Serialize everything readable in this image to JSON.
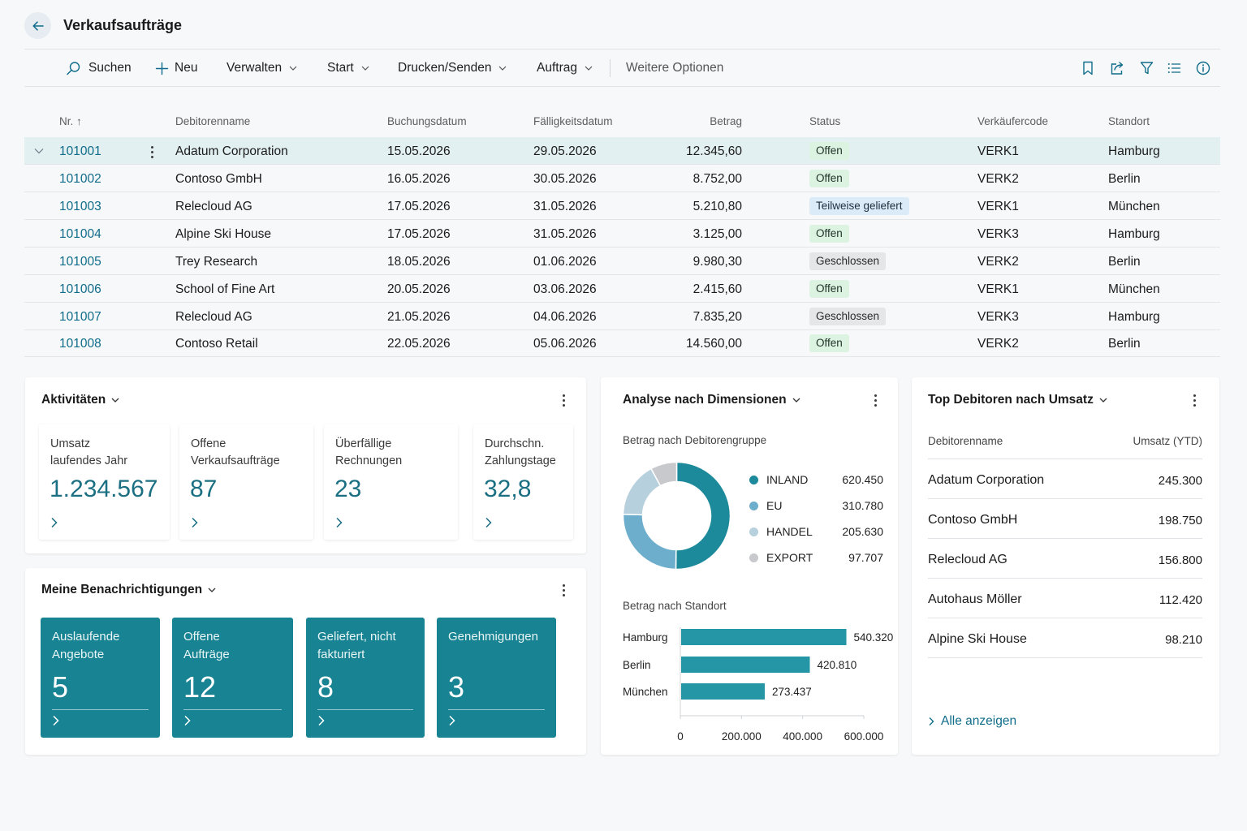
{
  "header": {
    "title": "Verkaufsaufträge"
  },
  "toolbar": {
    "search": "Suchen",
    "new": "Neu",
    "manage": "Verwalten",
    "start": "Start",
    "print": "Drucken/Senden",
    "order": "Auftrag",
    "more": "Weitere Optionen"
  },
  "table": {
    "columns": [
      "Nr. ↑",
      "Debitorenname",
      "Buchungsdatum",
      "Fälligkeitsdatum",
      "Betrag",
      "Status",
      "Verkäufercode",
      "Standort"
    ],
    "rows": [
      {
        "nr": "101001",
        "name": "Adatum Corporation",
        "posting": "15.05.2026",
        "due": "29.05.2026",
        "amount": "12.345,60",
        "status": "Offen",
        "sp": "VERK1",
        "loc": "Hamburg"
      },
      {
        "nr": "101002",
        "name": "Contoso GmbH",
        "posting": "16.05.2026",
        "due": "30.05.2026",
        "amount": "8.752,00",
        "status": "Offen",
        "sp": "VERK2",
        "loc": "Berlin"
      },
      {
        "nr": "101003",
        "name": "Relecloud AG",
        "posting": "17.05.2026",
        "due": "31.05.2026",
        "amount": "5.210,80",
        "status": "Teilweise geliefert",
        "sp": "VERK1",
        "loc": "München"
      },
      {
        "nr": "101004",
        "name": "Alpine Ski House",
        "posting": "17.05.2026",
        "due": "31.05.2026",
        "amount": "3.125,00",
        "status": "Offen",
        "sp": "VERK3",
        "loc": "Hamburg"
      },
      {
        "nr": "101005",
        "name": "Trey Research",
        "posting": "18.05.2026",
        "due": "01.06.2026",
        "amount": "9.980,30",
        "status": "Geschlossen",
        "sp": "VERK2",
        "loc": "Berlin"
      },
      {
        "nr": "101006",
        "name": "School of Fine Art",
        "posting": "20.05.2026",
        "due": "03.06.2026",
        "amount": "2.415,60",
        "status": "Offen",
        "sp": "VERK1",
        "loc": "München"
      },
      {
        "nr": "101007",
        "name": "Relecloud AG",
        "posting": "21.05.2026",
        "due": "04.06.2026",
        "amount": "7.835,20",
        "status": "Geschlossen",
        "sp": "VERK3",
        "loc": "Hamburg"
      },
      {
        "nr": "101008",
        "name": "Contoso Retail",
        "posting": "22.05.2026",
        "due": "05.06.2026",
        "amount": "14.560,00",
        "status": "Offen",
        "sp": "VERK2",
        "loc": "Berlin"
      }
    ]
  },
  "activities": {
    "title": "Aktivitäten",
    "tiles": [
      {
        "label1": "Umsatz",
        "label2": "laufendes Jahr",
        "value": "1.234.567"
      },
      {
        "label1": "Offene",
        "label2": "Verkaufsaufträge",
        "value": "87"
      },
      {
        "label1": "Überfällige",
        "label2": "Rechnungen",
        "value": "23"
      },
      {
        "label1": "Durchschn.",
        "label2": "Zahlungstage",
        "value": "32,8"
      }
    ]
  },
  "notifications": {
    "title": "Meine Benachrichtigungen",
    "tiles": [
      {
        "label1": "Auslaufende",
        "label2": "Angebote",
        "value": "5"
      },
      {
        "label1": "Offene",
        "label2": "Aufträge",
        "value": "12"
      },
      {
        "label1": "Geliefert, nicht",
        "label2": "fakturiert",
        "value": "8"
      },
      {
        "label1": "Genehmigungen",
        "label2": "",
        "value": "3"
      }
    ]
  },
  "analysis": {
    "title": "Analyse nach Dimensionen",
    "donut_title": "Betrag nach Debitorengruppe",
    "bar_title": "Betrag nach Standort"
  },
  "top_customers": {
    "title": "Top Debitoren nach Umsatz",
    "col_name": "Debitorenname",
    "col_value": "Umsatz (YTD)",
    "rows": [
      {
        "name": "Adatum Corporation",
        "value": "245.300"
      },
      {
        "name": "Contoso GmbH",
        "value": "198.750"
      },
      {
        "name": "Relecloud AG",
        "value": "156.800"
      },
      {
        "name": "Autohaus Möller",
        "value": "112.420"
      },
      {
        "name": "Alpine Ski House",
        "value": "98.210"
      }
    ],
    "show_all": "Alle anzeigen"
  },
  "colors": {
    "accent": "#0f6c8a",
    "tile": "#188493",
    "inland": "#1d8a9c",
    "eu": "#6eaecd",
    "handel": "#b7d0dd",
    "export": "#c7c9cc",
    "bar": "#2596a6"
  },
  "chart_data": [
    {
      "type": "pie",
      "title": "Betrag nach Debitorengruppe",
      "categories": [
        "INLAND",
        "EU",
        "HANDEL",
        "EXPORT"
      ],
      "values": [
        620450,
        310780,
        205630,
        97707
      ],
      "labels": [
        "620.450",
        "310.780",
        "205.630",
        "97.707"
      ],
      "legend": "right"
    },
    {
      "type": "bar",
      "orientation": "horizontal",
      "title": "Betrag nach Standort",
      "categories": [
        "Hamburg",
        "Berlin",
        "München"
      ],
      "values": [
        540320,
        420810,
        273437
      ],
      "labels": [
        "540.320",
        "420.810",
        "273.437"
      ],
      "xlim": [
        0,
        600000
      ],
      "ticks": [
        "0",
        "200.000",
        "400.000",
        "600.000"
      ]
    }
  ]
}
